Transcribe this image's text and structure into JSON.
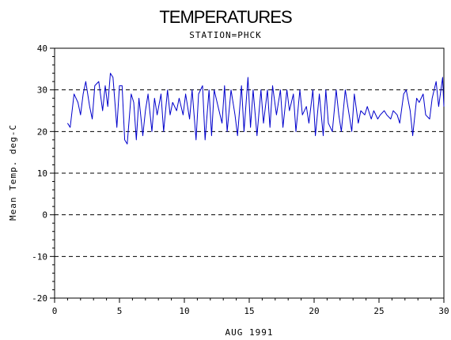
{
  "chart_data": {
    "type": "line",
    "title": "TEMPERATURES",
    "subtitle": "STATION=PHCK",
    "xlabel": "AUG 1991",
    "ylabel": "Mean Temp. deg-C",
    "xlim": [
      0,
      30
    ],
    "ylim": [
      -20,
      40
    ],
    "x_ticks": [
      0,
      5,
      10,
      15,
      20,
      25,
      30
    ],
    "y_ticks": [
      -20,
      -10,
      0,
      10,
      20,
      30,
      40
    ],
    "x_tick_labels": [
      "0",
      "5",
      "10",
      "15",
      "20",
      "25",
      "30"
    ],
    "y_tick_labels": [
      "-20",
      "-10",
      "0",
      "10",
      "20",
      "30",
      "40"
    ],
    "grid": "dashed horizontal at each y tick",
    "legend": "none",
    "series": [
      {
        "color": "#0000cc",
        "x": [
          1.0,
          1.2,
          1.5,
          1.8,
          2.0,
          2.2,
          2.4,
          2.7,
          2.9,
          3.1,
          3.4,
          3.7,
          3.9,
          4.1,
          4.3,
          4.5,
          4.8,
          5.0,
          5.2,
          5.4,
          5.6,
          5.9,
          6.1,
          6.3,
          6.5,
          6.8,
          7.0,
          7.2,
          7.5,
          7.7,
          7.9,
          8.2,
          8.4,
          8.7,
          8.9,
          9.1,
          9.4,
          9.6,
          9.9,
          10.1,
          10.4,
          10.6,
          10.9,
          11.1,
          11.4,
          11.6,
          11.9,
          12.1,
          12.3,
          12.6,
          12.9,
          13.1,
          13.3,
          13.6,
          13.9,
          14.1,
          14.4,
          14.6,
          14.9,
          15.1,
          15.3,
          15.6,
          15.9,
          16.1,
          16.4,
          16.6,
          16.8,
          17.1,
          17.4,
          17.6,
          17.9,
          18.1,
          18.4,
          18.6,
          18.9,
          19.1,
          19.4,
          19.6,
          19.9,
          20.1,
          20.4,
          20.7,
          20.9,
          21.1,
          21.4,
          21.7,
          21.9,
          22.1,
          22.4,
          22.6,
          22.9,
          23.1,
          23.4,
          23.6,
          23.9,
          24.1,
          24.4,
          24.6,
          24.9,
          25.1,
          25.4,
          25.6,
          25.9,
          26.1,
          26.4,
          26.6,
          26.9,
          27.1,
          27.4,
          27.6,
          27.9,
          28.1,
          28.4,
          28.6,
          28.9,
          29.1,
          29.4,
          29.6,
          29.9,
          30.0
        ],
        "y": [
          22,
          21,
          29,
          27,
          24,
          29,
          32,
          26,
          23,
          31,
          32,
          25,
          31,
          26,
          34,
          33,
          21,
          31,
          31,
          18,
          17,
          29,
          27,
          18,
          28,
          19,
          25,
          29,
          20,
          28,
          24,
          29,
          20,
          30,
          24,
          27,
          25,
          28,
          24,
          29,
          23,
          30,
          18,
          29,
          31,
          18,
          30,
          19,
          30,
          26,
          22,
          31,
          20,
          30,
          24,
          19,
          31,
          20,
          33,
          21,
          30,
          19,
          30,
          22,
          30,
          21,
          31,
          24,
          30,
          21,
          30,
          25,
          29,
          20,
          30,
          24,
          26,
          22,
          30,
          19,
          29,
          19,
          30,
          22,
          20,
          30,
          24,
          20,
          30,
          26,
          20,
          29,
          22,
          25,
          24,
          26,
          23,
          25,
          23,
          24,
          25,
          24,
          23,
          25,
          24,
          22,
          29,
          30,
          25,
          19,
          28,
          27,
          29,
          24,
          23,
          28,
          32,
          26,
          33,
          26
        ]
      }
    ]
  }
}
